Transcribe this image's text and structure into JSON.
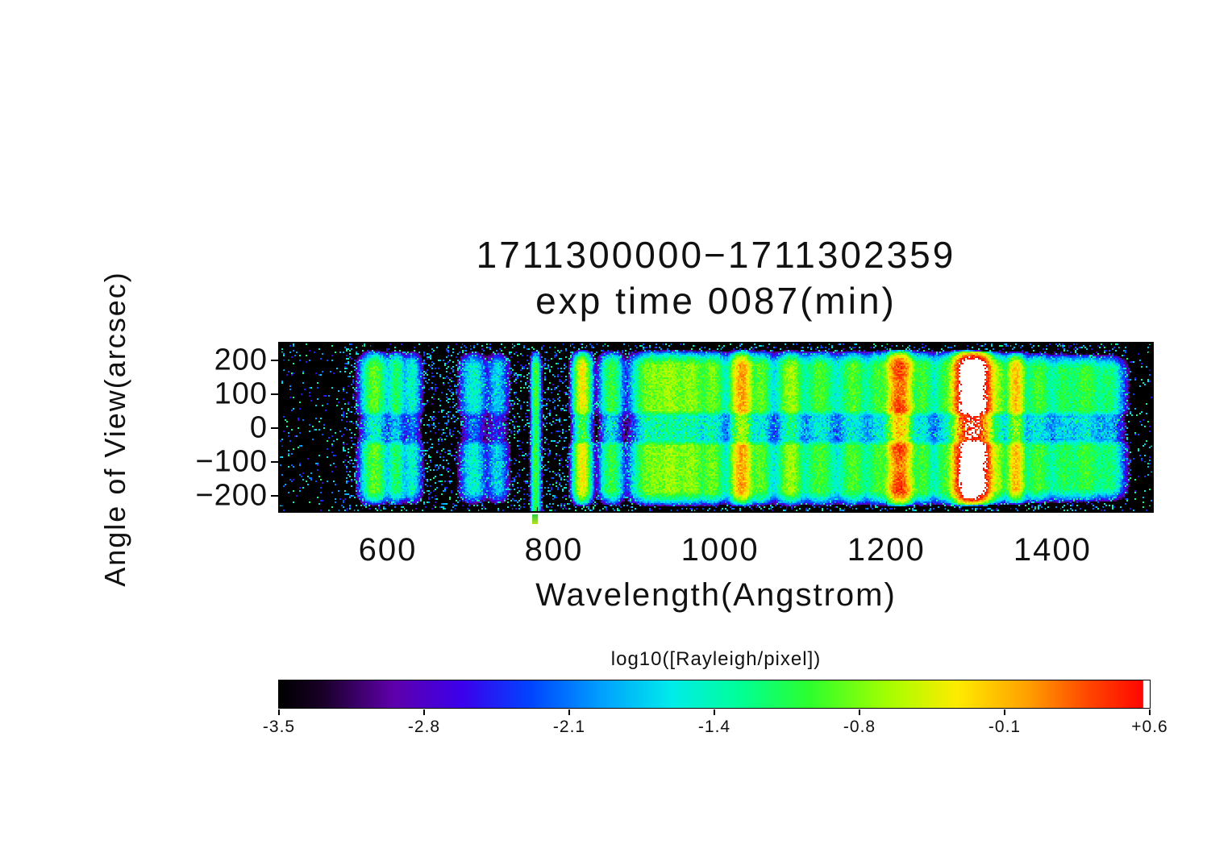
{
  "figure": {
    "background": "#ffffff",
    "frame_color": "#000000"
  },
  "chart_data": {
    "type": "heatmap",
    "title": "1711300000−1711302359",
    "subtitle": "exp time 0087(min)",
    "xlabel": "Wavelength(Angstrom)",
    "ylabel": "Angle of View(arcsec)",
    "xlim": [
      470,
      1520
    ],
    "ylim": [
      -245,
      250
    ],
    "x_ticks": [
      600,
      800,
      1000,
      1200,
      1400
    ],
    "x_tick_labels": [
      "600",
      "800",
      "1000",
      "1200",
      "1400"
    ],
    "y_ticks": [
      200,
      100,
      0,
      -100,
      -200
    ],
    "y_tick_labels": [
      "200",
      "100",
      "0",
      "−100",
      "−200"
    ],
    "value_scale": "log10",
    "value_range": [
      -3.5,
      0.6
    ],
    "colorbar": {
      "label": "log10([Rayleigh/pixel])",
      "ticks": [
        "-3.5",
        "-2.8",
        "-2.1",
        "-1.4",
        "-0.8",
        "-0.1",
        "+0.6"
      ],
      "min": -3.5,
      "max": 0.6
    },
    "field_of_view_bands": {
      "upper": [
        40,
        186
      ],
      "lower": [
        -186,
        -40
      ],
      "center_gap": [
        -32,
        32
      ],
      "edge_fade_arcsec": 46
    },
    "emission_lines": [
      {
        "wavelength": 584,
        "sigma": 7,
        "log_peak": -0.85
      },
      {
        "wavelength": 610,
        "sigma": 5,
        "log_peak": -1.15
      },
      {
        "wavelength": 629,
        "sigma": 5,
        "log_peak": -1.5
      },
      {
        "wavelength": 703,
        "sigma": 7,
        "log_peak": -1.55
      },
      {
        "wavelength": 732,
        "sigma": 6,
        "log_peak": -1.8
      },
      {
        "wavelength": 778,
        "sigma": 2.5,
        "log_peak": -1.0,
        "extend_down": true
      },
      {
        "wavelength": 834,
        "sigma": 4.5,
        "log_peak": -0.3
      },
      {
        "wavelength": 869,
        "sigma": 6,
        "log_peak": -1.0
      },
      {
        "wavelength": 916,
        "sigma": 10,
        "log_peak": -0.8
      },
      {
        "wavelength": 940,
        "sigma": 9,
        "log_peak": -0.72
      },
      {
        "wavelength": 965,
        "sigma": 9,
        "log_peak": -0.75
      },
      {
        "wavelength": 991,
        "sigma": 7,
        "log_peak": -0.85
      },
      {
        "wavelength": 1026,
        "sigma": 6,
        "log_peak": 0.02
      },
      {
        "wavelength": 1049,
        "sigma": 6,
        "log_peak": -0.9
      },
      {
        "wavelength": 1085,
        "sigma": 7,
        "log_peak": -0.65
      },
      {
        "wavelength": 1120,
        "sigma": 9,
        "log_peak": -1.0
      },
      {
        "wavelength": 1160,
        "sigma": 8,
        "log_peak": -0.95
      },
      {
        "wavelength": 1190,
        "sigma": 7,
        "log_peak": -1.05
      },
      {
        "wavelength": 1216,
        "sigma": 7,
        "log_peak": 0.5,
        "self_absorbed": true
      },
      {
        "wavelength": 1244,
        "sigma": 6,
        "log_peak": -1.0
      },
      {
        "wavelength": 1270,
        "sigma": 6,
        "log_peak": -1.15
      },
      {
        "wavelength": 1304,
        "sigma": 9,
        "log_peak": 1.3
      },
      {
        "wavelength": 1335,
        "sigma": 5,
        "log_peak": -0.8
      },
      {
        "wavelength": 1356,
        "sigma": 5,
        "log_peak": -0.1
      },
      {
        "wavelength": 1383,
        "sigma": 8,
        "log_peak": -1.0
      },
      {
        "wavelength": 1414,
        "sigma": 8,
        "log_peak": -1.2
      },
      {
        "wavelength": 1440,
        "sigma": 9,
        "log_peak": -1.05
      },
      {
        "wavelength": 1468,
        "sigma": 8,
        "log_peak": -1.25
      }
    ],
    "colormap": [
      [
        0.0,
        0,
        0,
        0
      ],
      [
        0.05,
        25,
        0,
        40
      ],
      [
        0.13,
        95,
        0,
        170
      ],
      [
        0.21,
        60,
        0,
        235
      ],
      [
        0.29,
        0,
        70,
        255
      ],
      [
        0.37,
        0,
        160,
        255
      ],
      [
        0.45,
        0,
        235,
        235
      ],
      [
        0.53,
        0,
        255,
        150
      ],
      [
        0.61,
        45,
        255,
        45
      ],
      [
        0.7,
        165,
        255,
        0
      ],
      [
        0.78,
        255,
        235,
        0
      ],
      [
        0.86,
        255,
        160,
        0
      ],
      [
        0.93,
        255,
        70,
        0
      ],
      [
        1.0,
        255,
        0,
        0
      ]
    ]
  }
}
